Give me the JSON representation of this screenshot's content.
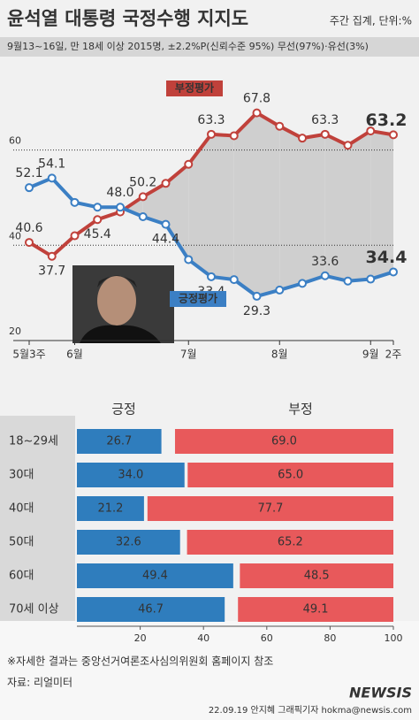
{
  "header": {
    "title": "윤석열 대통령 국정수행 지지도",
    "unit": "주간 집계, 단위:%",
    "survey": "9월13~16일, 만 18세 이상 2015명, ±2.2%P(신뢰수준 95%) 무선(97%)·유선(3%)"
  },
  "chart_data": [
    {
      "type": "line",
      "categories": [
        "5월3주",
        null,
        "6월",
        null,
        null,
        null,
        null,
        "7월",
        null,
        null,
        null,
        "8월",
        null,
        null,
        null,
        "9월",
        "2주"
      ],
      "series": [
        {
          "name": "부정평가",
          "color": "#c0413b",
          "values": [
            40.6,
            37.7,
            42.0,
            45.4,
            47.0,
            50.2,
            53.0,
            57.0,
            63.3,
            63.0,
            67.8,
            65.0,
            62.5,
            63.3,
            61.0,
            64.0,
            63.2
          ],
          "value_labels": [
            "40.6",
            "37.7",
            null,
            "45.4",
            null,
            "50.2",
            null,
            null,
            "63.3",
            null,
            "67.8",
            null,
            null,
            "63.3",
            null,
            null,
            "63.2"
          ]
        },
        {
          "name": "긍정평가",
          "color": "#3b7fc4",
          "values": [
            52.1,
            54.1,
            49.0,
            48.0,
            48.0,
            46.0,
            44.4,
            37.0,
            33.4,
            32.8,
            29.3,
            30.6,
            32.0,
            33.6,
            32.5,
            32.9,
            34.4
          ],
          "value_labels": [
            "52.1",
            "54.1",
            null,
            null,
            "48.0",
            null,
            "44.4",
            null,
            "33.4",
            null,
            "29.3",
            null,
            null,
            "33.6",
            null,
            null,
            "34.4"
          ]
        }
      ],
      "ylim": [
        20,
        72
      ],
      "yticks": [
        20,
        40,
        60
      ],
      "grid": true
    },
    {
      "type": "stacked-bar-horizontal",
      "categories": [
        "18~29세",
        "30대",
        "40대",
        "50대",
        "60대",
        "70세 이상"
      ],
      "series": [
        {
          "name": "긍정",
          "color": "#2f7dbd",
          "values": [
            26.7,
            34.0,
            21.2,
            32.6,
            49.4,
            46.7
          ],
          "value_labels": [
            "26.7",
            "34.0",
            "21.2",
            "32.6",
            "49.4",
            "46.7"
          ]
        },
        {
          "name": "부정",
          "color": "#e8595b",
          "values": [
            69.0,
            65.0,
            77.7,
            65.2,
            48.5,
            49.1
          ],
          "value_labels": [
            "69.0",
            "65.0",
            "77.7",
            "65.2",
            "48.5",
            "49.1"
          ]
        }
      ],
      "xlim": [
        0,
        100
      ],
      "xticks": [
        20,
        40,
        60,
        80,
        100
      ]
    }
  ],
  "footer": {
    "note": "※자세한 결과는 중앙선거여론조사심의위원회 홈페이지 참조",
    "source": "자료: 리얼미터",
    "credit": "22.09.19 안지혜 그래픽기자 hokma@newsis.com",
    "logo": "NEWSIS"
  }
}
